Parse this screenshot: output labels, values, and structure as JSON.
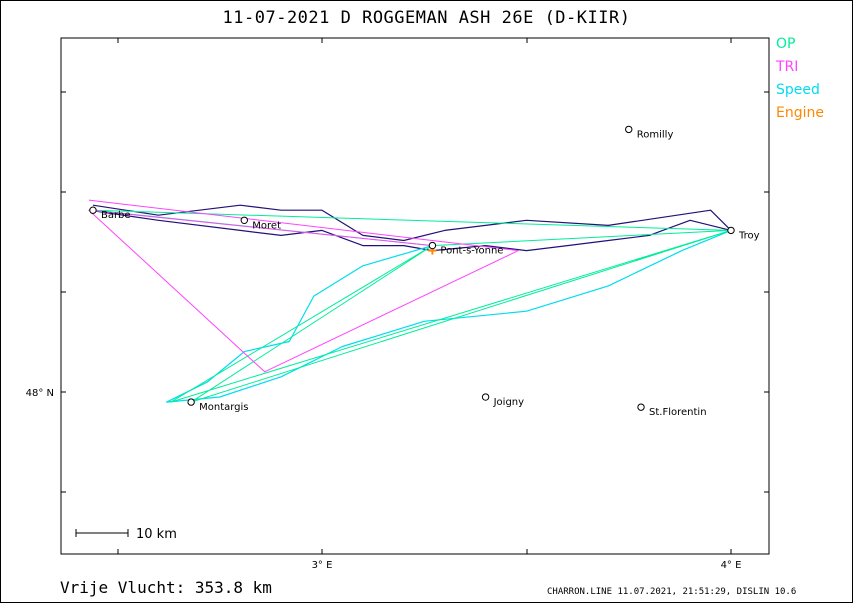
{
  "header": {
    "title": "11-07-2021   D ROGGEMAN   ASH 26E (D-KIIR)"
  },
  "legend": [
    {
      "label": "OP",
      "color": "#00ee99"
    },
    {
      "label": "TRI",
      "color": "#ff44ff"
    },
    {
      "label": "Speed",
      "color": "#00ddee"
    },
    {
      "label": "Engine",
      "color": "#ff8800"
    }
  ],
  "distance_label": "Vrije Vlucht:  353.8 km",
  "footer": "CHARRON.LINE 11.07.2021, 21:51:29, DISLIN 10.6",
  "scale_bar": {
    "label": "10  km"
  },
  "chart_data": {
    "type": "map",
    "x_axis": {
      "ticks": [
        {
          "value": 3,
          "label": "3° E"
        },
        {
          "value": 4,
          "label": "4° E"
        }
      ]
    },
    "y_axis": {
      "ticks": [
        {
          "value": 48,
          "label": "48° N"
        }
      ]
    },
    "towns": [
      {
        "name": "Romilly",
        "lon": 3.75,
        "lat": 48.52
      },
      {
        "name": "Barbe",
        "lon": 2.44,
        "lat": 48.36
      },
      {
        "name": "Moret",
        "lon": 2.81,
        "lat": 48.34
      },
      {
        "name": "Troy",
        "lon": 4.0,
        "lat": 48.32
      },
      {
        "name": "Pont-s-Yonne",
        "lon": 3.27,
        "lat": 48.29
      },
      {
        "name": "Montargis",
        "lon": 2.68,
        "lat": 47.98
      },
      {
        "name": "Joigny",
        "lon": 3.4,
        "lat": 47.99
      },
      {
        "name": "St.Florentin",
        "lon": 3.78,
        "lat": 47.97
      }
    ],
    "op_route": [
      [
        3.27,
        48.29
      ],
      [
        4.0,
        48.32
      ],
      [
        2.44,
        48.36
      ],
      [
        3.27,
        48.29
      ],
      [
        2.63,
        47.98
      ],
      [
        4.0,
        48.32
      ],
      [
        2.68,
        47.98
      ],
      [
        3.27,
        48.29
      ]
    ],
    "tri_route": [
      [
        2.43,
        48.38
      ],
      [
        3.48,
        48.28
      ],
      [
        2.86,
        48.04
      ],
      [
        2.43,
        48.36
      ],
      [
        3.27,
        48.29
      ]
    ],
    "track_dark": [
      [
        2.43,
        48.36
      ],
      [
        2.6,
        48.34
      ],
      [
        2.8,
        48.32
      ],
      [
        2.9,
        48.31
      ],
      [
        3.0,
        48.32
      ],
      [
        3.1,
        48.29
      ],
      [
        3.2,
        48.29
      ],
      [
        3.27,
        48.28
      ],
      [
        3.4,
        48.29
      ],
      [
        3.5,
        48.28
      ],
      [
        3.6,
        48.29
      ],
      [
        3.7,
        48.3
      ],
      [
        3.8,
        48.31
      ],
      [
        3.9,
        48.34
      ],
      [
        4.0,
        48.32
      ],
      [
        3.95,
        48.36
      ],
      [
        3.7,
        48.33
      ],
      [
        3.5,
        48.34
      ],
      [
        3.3,
        48.32
      ],
      [
        3.2,
        48.3
      ],
      [
        3.1,
        48.31
      ],
      [
        3.0,
        48.36
      ],
      [
        2.9,
        48.36
      ],
      [
        2.8,
        48.37
      ],
      [
        2.6,
        48.35
      ],
      [
        2.44,
        48.37
      ]
    ],
    "track_speed": [
      [
        3.27,
        48.29
      ],
      [
        3.1,
        48.25
      ],
      [
        2.98,
        48.19
      ],
      [
        2.92,
        48.1
      ],
      [
        2.81,
        48.08
      ],
      [
        2.72,
        48.02
      ],
      [
        2.62,
        47.98
      ],
      [
        2.75,
        47.99
      ],
      [
        2.9,
        48.03
      ],
      [
        3.05,
        48.09
      ],
      [
        3.25,
        48.14
      ],
      [
        3.5,
        48.16
      ],
      [
        3.7,
        48.21
      ],
      [
        3.88,
        48.28
      ],
      [
        4.0,
        48.32
      ]
    ]
  }
}
